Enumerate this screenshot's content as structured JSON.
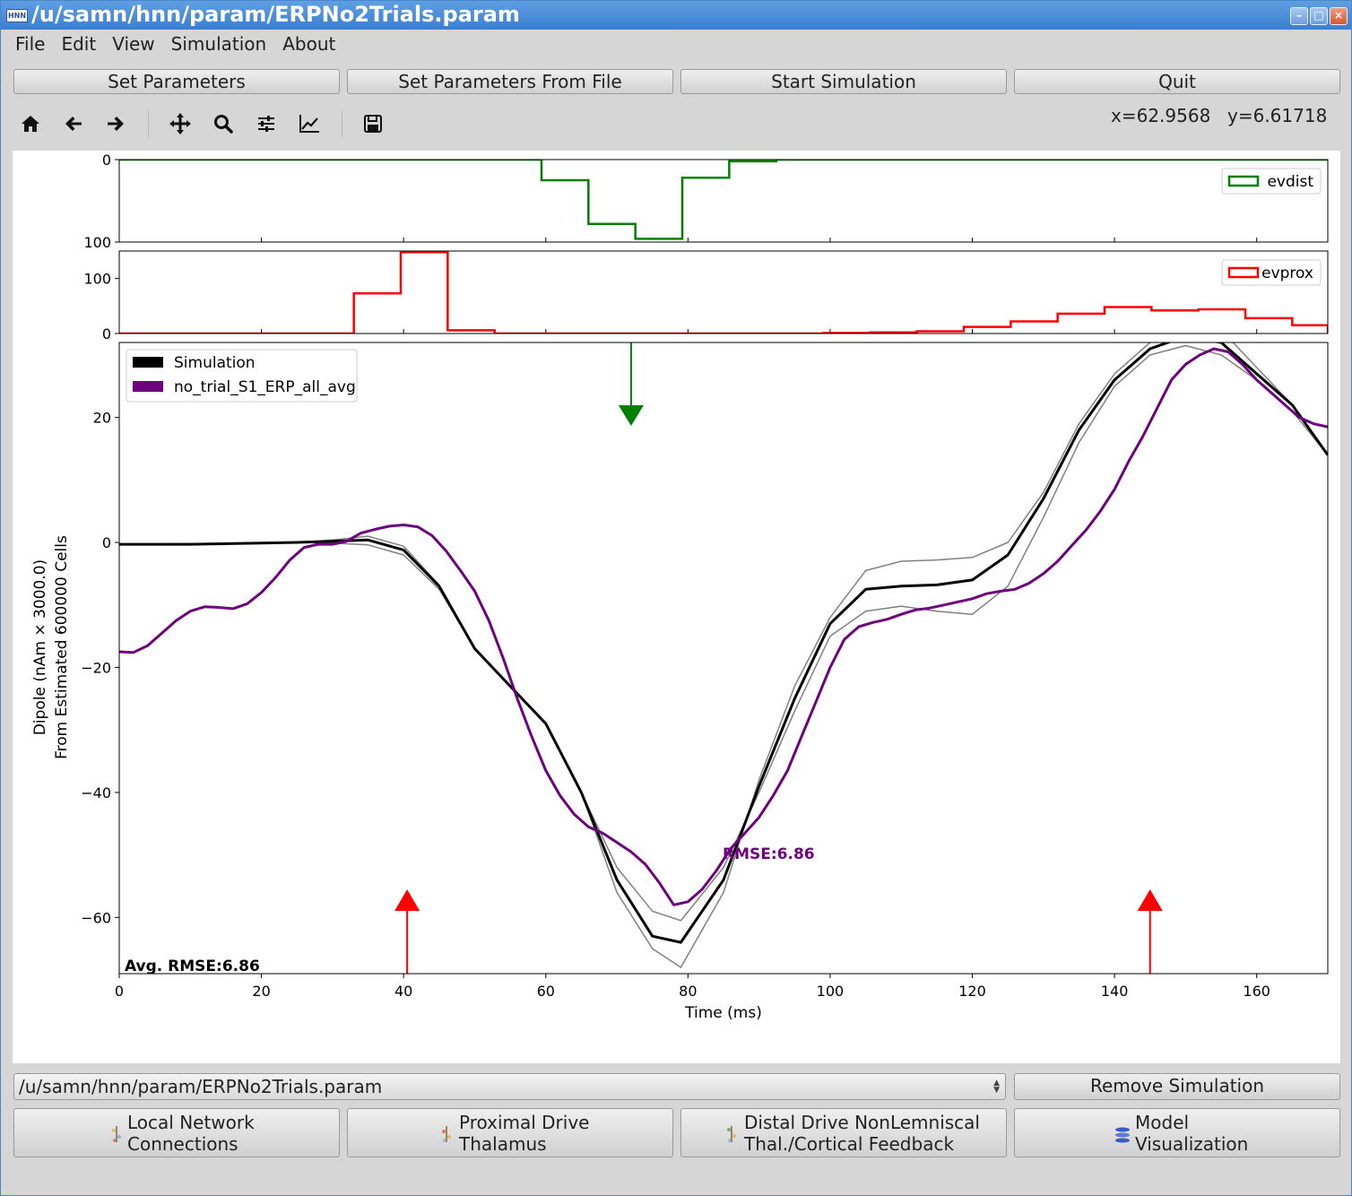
{
  "window": {
    "title": "/u/samn/hnn/param/ERPNo2Trials.param",
    "app_icon": "HNN"
  },
  "menu": [
    "File",
    "Edit",
    "View",
    "Simulation",
    "About"
  ],
  "buttons": {
    "set_params": "Set Parameters",
    "set_params_file": "Set Parameters From File",
    "start_sim": "Start Simulation",
    "quit": "Quit"
  },
  "toolbar": [
    "home-icon",
    "back-icon",
    "forward-icon",
    "pan-icon",
    "zoom-icon",
    "configure-subplots-icon",
    "edit-axes-icon",
    "save-icon"
  ],
  "cursor": {
    "x": "x=62.9568",
    "y": "y=6.61718"
  },
  "chart_data": [
    {
      "type": "histogram",
      "legend": "evdist",
      "legend_position": "top-right",
      "color": "#008000",
      "yticks": [
        "0",
        "100"
      ],
      "y_inverted": true,
      "ylim": [
        0,
        100
      ],
      "bin_edges": [
        0,
        6.6,
        13.2,
        19.8,
        26.4,
        33,
        39.6,
        46.2,
        52.8,
        59.4,
        66,
        72.6,
        79.2,
        85.8,
        92.4,
        99,
        105.6,
        112.2,
        118.8,
        125.4,
        132,
        138.6,
        145.2,
        151.8,
        158.4,
        165,
        170
      ],
      "counts": [
        0,
        0,
        0,
        0,
        0,
        0,
        0,
        0,
        0,
        25,
        78,
        96,
        22,
        2,
        0,
        0,
        0,
        0,
        0,
        0,
        0,
        0,
        0,
        0,
        0,
        0
      ]
    },
    {
      "type": "histogram",
      "legend": "evprox",
      "legend_position": "top-right",
      "color": "#ff0000",
      "yticks": [
        "0",
        "100"
      ],
      "ylim": [
        0,
        150
      ],
      "bin_edges": [
        0,
        6.6,
        13.2,
        19.8,
        26.4,
        33,
        39.6,
        46.2,
        52.8,
        59.4,
        66,
        72.6,
        79.2,
        85.8,
        92.4,
        99,
        105.6,
        112.2,
        118.8,
        125.4,
        132,
        138.6,
        145.2,
        151.8,
        158.4,
        165,
        170
      ],
      "counts": [
        0,
        0,
        0,
        0,
        0,
        73,
        148,
        6,
        0,
        0,
        0,
        0,
        0,
        0,
        0,
        1,
        2,
        4,
        12,
        22,
        36,
        48,
        42,
        44,
        28,
        15
      ]
    },
    {
      "type": "line",
      "xlabel": "Time (ms)",
      "ylabel": "Dipole (nAm × 3000.0)",
      "ylabel2": "From Estimated 600000 Cells",
      "xlim": [
        0,
        170
      ],
      "ylim": [
        -69,
        32
      ],
      "xticks": [
        0,
        20,
        40,
        60,
        80,
        100,
        120,
        140,
        160
      ],
      "yticks": [
        20,
        0,
        -20,
        -40,
        -60
      ],
      "ytick_labels": [
        "20",
        "0",
        "−20",
        "−40",
        "−60"
      ],
      "legend_position": "top-left",
      "series": [
        {
          "name": "Simulation",
          "color": "#000000",
          "x": [
            0,
            10,
            20,
            25,
            30,
            35,
            40,
            45,
            50,
            55,
            60,
            65,
            70,
            75,
            79,
            85,
            90,
            95,
            100,
            105,
            110,
            115,
            120,
            125,
            130,
            135,
            140,
            145,
            150,
            155,
            160,
            165,
            170
          ],
          "y": [
            -0.3,
            -0.3,
            -0.1,
            0,
            0.2,
            0.4,
            -1.2,
            -7,
            -17,
            -23,
            -29,
            -40,
            -54,
            -63,
            -64,
            -54,
            -39,
            -25,
            -13,
            -7.5,
            -7,
            -6.8,
            -6,
            -2,
            7,
            18,
            26,
            31,
            33,
            32,
            27,
            22,
            14
          ]
        },
        {
          "name": "",
          "color": "#808080",
          "x": [
            0,
            20,
            25,
            30,
            35,
            40,
            45,
            50,
            55,
            60,
            65,
            70,
            75,
            79,
            85,
            90,
            95,
            100,
            105,
            110,
            115,
            120,
            125,
            130,
            135,
            140,
            145,
            150,
            155,
            160,
            165,
            170
          ],
          "y": [
            -0.3,
            -0.1,
            0,
            0.4,
            1,
            -0.6,
            -6.8,
            -17,
            -23,
            -29,
            -40,
            -56,
            -65,
            -68,
            -56,
            -38,
            -23,
            -12,
            -4.5,
            -3,
            -2.8,
            -2.4,
            0,
            8,
            19,
            27,
            32,
            34.5,
            34,
            28,
            22,
            14
          ]
        },
        {
          "name": "",
          "color": "#808080",
          "x": [
            0,
            20,
            25,
            30,
            35,
            40,
            45,
            50,
            55,
            60,
            65,
            70,
            75,
            79,
            85,
            90,
            95,
            100,
            105,
            110,
            115,
            120,
            125,
            130,
            135,
            140,
            145,
            150,
            155,
            160,
            165,
            170
          ],
          "y": [
            -0.3,
            -0.1,
            0,
            -0.1,
            -0.4,
            -2,
            -7.5,
            -17,
            -23,
            -29,
            -40,
            -52,
            -59,
            -60.5,
            -52,
            -40,
            -27,
            -15,
            -11,
            -10.2,
            -11,
            -11.5,
            -7,
            4,
            16,
            25,
            30,
            31.5,
            30,
            26,
            21,
            14
          ]
        },
        {
          "name": "no_trial_S1_ERP_all_avg",
          "color": "#6e007e",
          "x": [
            0,
            2,
            4,
            6,
            8,
            10,
            12,
            14,
            16,
            18,
            20,
            22,
            24,
            26,
            28,
            30,
            32,
            34,
            36,
            38,
            40,
            42,
            44,
            46,
            48,
            50,
            52,
            54,
            56,
            58,
            60,
            62,
            64,
            66,
            68,
            70,
            72,
            74,
            76,
            78,
            80,
            82,
            84,
            86,
            88,
            90,
            92,
            94,
            96,
            98,
            100,
            102,
            104,
            106,
            108,
            110,
            112,
            114,
            116,
            118,
            120,
            122,
            124,
            126,
            128,
            130,
            132,
            134,
            136,
            138,
            140,
            142,
            144,
            146,
            148,
            150,
            152,
            154,
            156,
            158,
            160,
            162,
            164,
            166,
            168,
            170
          ],
          "y": [
            -17.5,
            -17.6,
            -16.5,
            -14.5,
            -12.5,
            -11,
            -10.3,
            -10.4,
            -10.6,
            -9.8,
            -8,
            -5.6,
            -2.8,
            -0.8,
            -0.3,
            -0.3,
            0.2,
            1.5,
            2.1,
            2.6,
            2.8,
            2.5,
            1.1,
            -1.4,
            -4.5,
            -7.8,
            -12.5,
            -18.5,
            -25,
            -31,
            -36.5,
            -40.5,
            -43.5,
            -45.5,
            -46.5,
            -48,
            -49.5,
            -51.5,
            -54.5,
            -58,
            -57.5,
            -55.5,
            -52.5,
            -49,
            -46.5,
            -44,
            -40.5,
            -36.5,
            -31,
            -25.5,
            -20,
            -15.5,
            -13.5,
            -12.8,
            -12.3,
            -11.5,
            -10.8,
            -10.5,
            -10,
            -9.5,
            -9,
            -8.2,
            -7.8,
            -7.5,
            -6.5,
            -5,
            -3,
            -0.5,
            2,
            5,
            8.5,
            13,
            17,
            21.5,
            26,
            28.5,
            30,
            31,
            30.5,
            28.5,
            26,
            24,
            22,
            20,
            19,
            18.5
          ]
        }
      ],
      "annotations": {
        "rmse": "RMSE:6.86",
        "avg_rmse": "Avg. RMSE:6.86"
      },
      "drive_arrows": [
        {
          "type": "distal",
          "t": 72,
          "color": "#008000"
        },
        {
          "type": "proximal",
          "t": 40.5,
          "color": "#ff0000"
        },
        {
          "type": "proximal",
          "t": 145,
          "color": "#ff0000"
        }
      ]
    }
  ],
  "bottom": {
    "file_combo": "/u/samn/hnn/param/ERPNo2Trials.param",
    "remove_sim": "Remove Simulation",
    "local_network": [
      "Local Network",
      "Connections"
    ],
    "proximal_drive": [
      "Proximal Drive",
      "Thalamus"
    ],
    "distal_drive": [
      "Distal Drive NonLemniscal",
      "Thal./Cortical Feedback"
    ],
    "model_vis": [
      "Model",
      "Visualization"
    ]
  }
}
